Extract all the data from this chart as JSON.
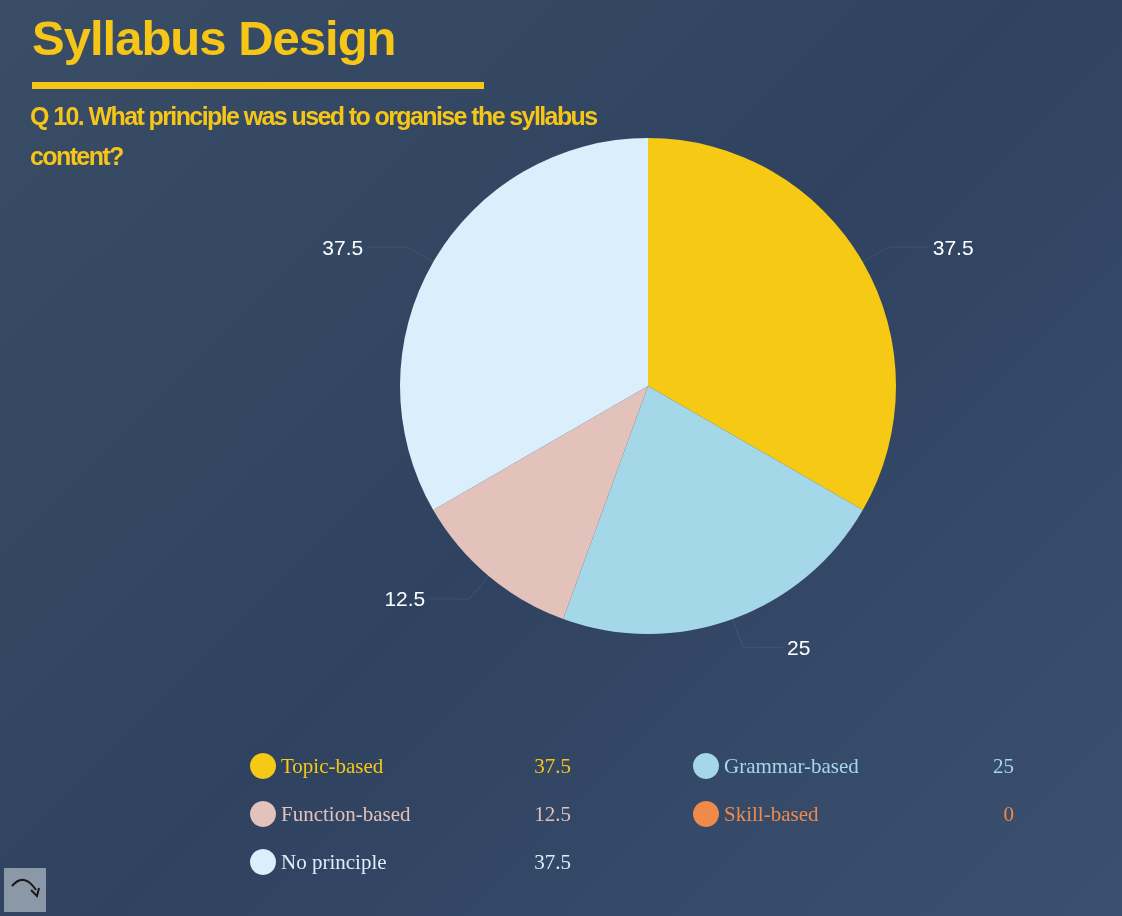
{
  "chart_data": {
    "type": "pie",
    "title": "Syllabus Design",
    "subtitle": "Q 10. What principle was used to  organise the syllabus content?",
    "categories": [
      "Topic-based",
      "Grammar-based",
      "Function-based",
      "Skill-based",
      "No principle"
    ],
    "values": [
      37.5,
      25,
      12.5,
      0,
      37.5
    ],
    "value_labels": [
      "37.5",
      "25",
      "12.5",
      "0",
      "37.5"
    ],
    "colors": [
      "#f6c915",
      "#a4d8e8",
      "#e2c2bb",
      "#f08a4b",
      "#dbeefc"
    ],
    "legend": "bottom"
  }
}
